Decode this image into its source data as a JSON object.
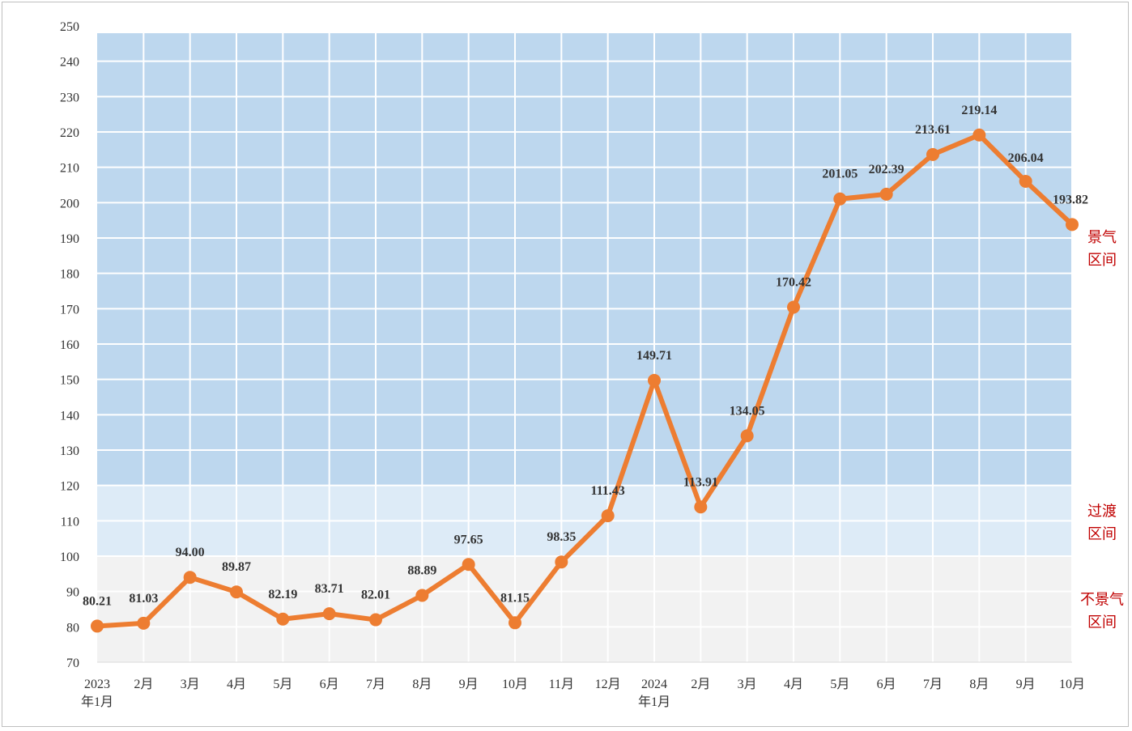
{
  "chart_data": {
    "type": "line",
    "title": "",
    "xlabel": "",
    "ylabel": "",
    "ylim": [
      70,
      250
    ],
    "yticks": [
      70,
      80,
      90,
      100,
      110,
      120,
      130,
      140,
      150,
      160,
      170,
      180,
      190,
      200,
      210,
      220,
      230,
      240,
      250
    ],
    "grid": true,
    "categories": [
      [
        "2023",
        "年1月"
      ],
      [
        "2月"
      ],
      [
        "3月"
      ],
      [
        "4月"
      ],
      [
        "5月"
      ],
      [
        "6月"
      ],
      [
        "7月"
      ],
      [
        "8月"
      ],
      [
        "9月"
      ],
      [
        "10月"
      ],
      [
        "11月"
      ],
      [
        "12月"
      ],
      [
        "2024",
        "年1月"
      ],
      [
        "2月"
      ],
      [
        "3月"
      ],
      [
        "4月"
      ],
      [
        "5月"
      ],
      [
        "6月"
      ],
      [
        "7月"
      ],
      [
        "8月"
      ],
      [
        "9月"
      ],
      [
        "10月"
      ]
    ],
    "series": [
      {
        "name": "index",
        "color": "#ed7d31",
        "values": [
          80.21,
          81.03,
          94.0,
          89.87,
          82.19,
          83.71,
          82.01,
          88.89,
          97.65,
          81.15,
          98.35,
          111.43,
          149.71,
          113.91,
          134.05,
          170.42,
          201.05,
          202.39,
          213.61,
          219.14,
          206.04,
          193.82
        ],
        "labels": [
          "80.21",
          "81.03",
          "94.00",
          "89.87",
          "82.19",
          "83.71",
          "82.01",
          "88.89",
          "97.65",
          "81.15",
          "98.35",
          "111.43",
          "149.71",
          "113.91",
          "134.05",
          "170.42",
          "201.05",
          "202.39",
          "213.61",
          "219.14",
          "206.04",
          "193.82"
        ]
      }
    ],
    "zones": [
      {
        "name": "boom",
        "from": 120,
        "to": 250,
        "color": "#bdd7ee",
        "label_lines": [
          "景气",
          "区间"
        ]
      },
      {
        "name": "transition",
        "from": 100,
        "to": 120,
        "color": "#ddebf7",
        "label_lines": [
          "过渡",
          "区间"
        ]
      },
      {
        "name": "slump",
        "from": 70,
        "to": 100,
        "color": "#f2f2f2",
        "label_lines": [
          "不景气",
          "区间"
        ]
      }
    ],
    "zone_label_color": "#c00000"
  }
}
